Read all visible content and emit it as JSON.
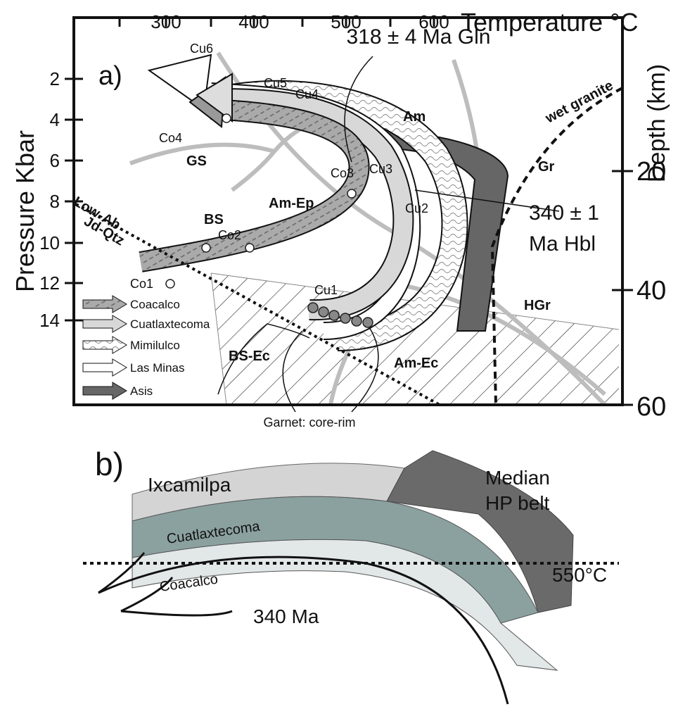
{
  "panel_a": {
    "label": "a)",
    "x_axis_title": "Temperature °C",
    "x_ticks": [
      300,
      400,
      500,
      600
    ],
    "y_axis_title": "Pressure Kbar",
    "y_ticks": [
      2,
      4,
      6,
      8,
      10,
      12,
      14
    ],
    "y2_axis_title": "Depth (km)",
    "y2_ticks": [
      20,
      40,
      60
    ],
    "annotations": [
      "318 ± 4 Ma Gln",
      "340 ± 1",
      "Ma Hbl",
      "wet granite",
      "Garnet: core-rim"
    ],
    "facies": [
      "GS",
      "BS",
      "Am-Ep",
      "Am",
      "Gr",
      "HGr",
      "BS-Ec",
      "Am-Ec",
      "Low-Ab",
      "Jd-Qtz"
    ],
    "samples": [
      "Cu6",
      "Cu5",
      "Cu4",
      "Co4",
      "Co3",
      "Cu3",
      "Cu2",
      "Co2",
      "Co1",
      "Cu1"
    ],
    "legend": [
      "Coacalco",
      "Cuatlaxtecoma",
      "Mimilulco",
      "Las Minas",
      "Asis"
    ]
  },
  "panel_b": {
    "label": "b)",
    "labels": [
      "Ixcamilpa",
      "Median",
      "HP belt",
      "Cuatlaxtecoma",
      "550°C",
      "Coacalco",
      "340 Ma"
    ]
  }
}
